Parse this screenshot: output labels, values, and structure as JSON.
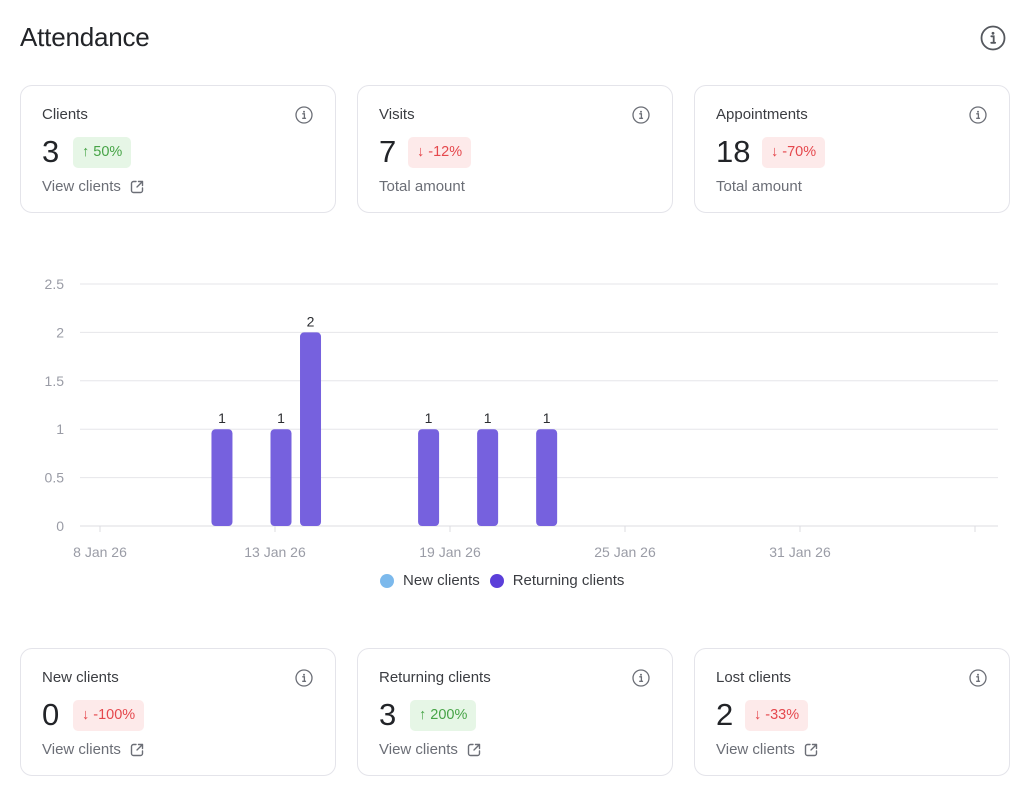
{
  "header": {
    "title": "Attendance"
  },
  "colors": {
    "bar": "#7661de",
    "new_clients": "#7cb9ec",
    "returning_clients": "#5b3fd9",
    "positive": "#47a447",
    "negative": "#e5484d"
  },
  "top_cards": [
    {
      "label": "Clients",
      "value": "3",
      "change": "↑ 50%",
      "trend": "up",
      "footer": "View clients",
      "footer_is_link": true
    },
    {
      "label": "Visits",
      "value": "7",
      "change": "↓ -12%",
      "trend": "down",
      "footer": "Total amount",
      "footer_is_link": false
    },
    {
      "label": "Appointments",
      "value": "18",
      "change": "↓ -70%",
      "trend": "down",
      "footer": "Total amount",
      "footer_is_link": false
    }
  ],
  "bottom_cards": [
    {
      "label": "New clients",
      "value": "0",
      "change": "↓ -100%",
      "trend": "down",
      "footer": "View clients",
      "footer_is_link": true
    },
    {
      "label": "Returning clients",
      "value": "3",
      "change": "↑ 200%",
      "trend": "up",
      "footer": "View clients",
      "footer_is_link": true
    },
    {
      "label": "Lost clients",
      "value": "2",
      "change": "↓ -33%",
      "trend": "down",
      "footer": "View clients",
      "footer_is_link": true
    }
  ],
  "legend": [
    {
      "label": "New clients",
      "color": "#7cb9ec"
    },
    {
      "label": "Returning clients",
      "color": "#5b3fd9"
    }
  ],
  "chart_data": {
    "type": "bar",
    "title": "",
    "xlabel": "",
    "ylabel": "",
    "ylim": [
      0,
      2.5
    ],
    "y_ticks": [
      "0",
      "0.5",
      "1",
      "1.5",
      "2",
      "2.5"
    ],
    "y_tick_values": [
      0,
      0.5,
      1,
      1.5,
      2,
      2.5
    ],
    "x_tick_labels": [
      "8 Jan 26",
      "13 Jan 26",
      "19 Jan 26",
      "25 Jan 26",
      "31 Jan 26",
      ""
    ],
    "grid": true,
    "legend_position": "bottom",
    "categories": [
      "11 Jan 26",
      "13 Jan 26",
      "14 Jan 26",
      "18 Jan 26",
      "20 Jan 26",
      "22 Jan 26"
    ],
    "series": [
      {
        "name": "New clients",
        "values": [
          0,
          0,
          0,
          0,
          0,
          0
        ]
      },
      {
        "name": "Returning clients",
        "values": [
          1,
          1,
          2,
          1,
          1,
          1
        ]
      }
    ],
    "data_labels": [
      "1",
      "1",
      "2",
      "1",
      "1",
      "1"
    ]
  }
}
